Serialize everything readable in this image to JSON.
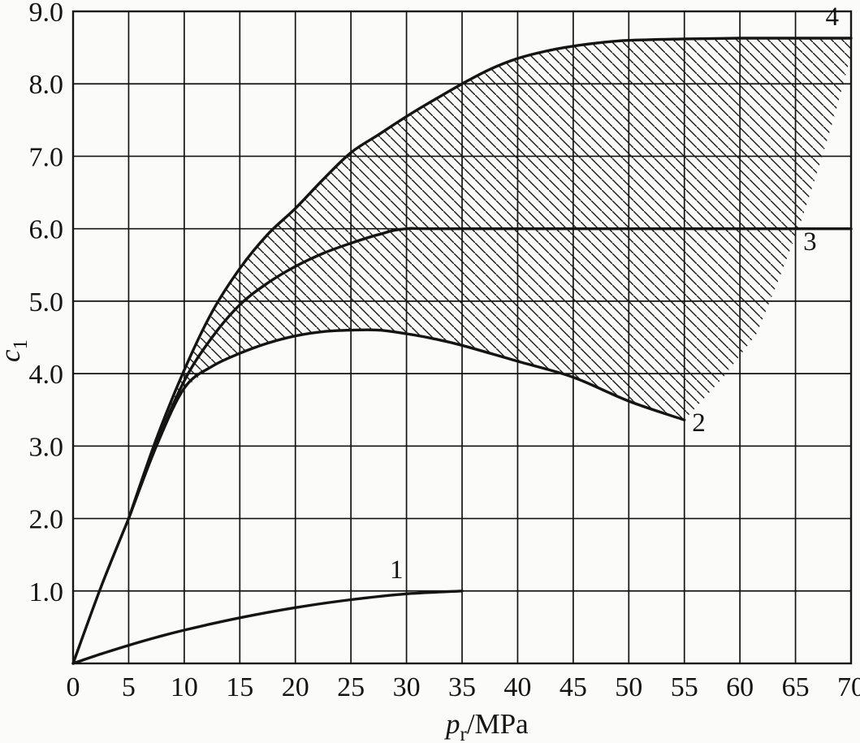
{
  "figure": {
    "background": "#fbfbfa",
    "ink": "#141414"
  },
  "chart_data": {
    "type": "line",
    "title": "",
    "xlabel": "pr/MPa",
    "ylabel": "c1",
    "xlabel_parts": {
      "symbol": "p",
      "subscript": "r",
      "unit": "/MPa"
    },
    "ylabel_parts": {
      "symbol": "c",
      "subscript": "1"
    },
    "xlim": [
      0,
      70
    ],
    "ylim": [
      0,
      9
    ],
    "grid": true,
    "x_grid_step": 5,
    "y_grid_step": 1,
    "legend_position": "none",
    "x_ticks": [
      {
        "value": 0,
        "label": "0"
      },
      {
        "value": 5,
        "label": "5"
      },
      {
        "value": 10,
        "label": "10"
      },
      {
        "value": 15,
        "label": "15"
      },
      {
        "value": 20,
        "label": "20"
      },
      {
        "value": 25,
        "label": "25"
      },
      {
        "value": 30,
        "label": "30"
      },
      {
        "value": 35,
        "label": "35"
      },
      {
        "value": 40,
        "label": "40"
      },
      {
        "value": 45,
        "label": "45"
      },
      {
        "value": 50,
        "label": "50"
      },
      {
        "value": 55,
        "label": "55"
      },
      {
        "value": 60,
        "label": "60"
      },
      {
        "value": 65,
        "label": "65"
      },
      {
        "value": 70,
        "label": "70"
      }
    ],
    "y_ticks": [
      {
        "value": 1,
        "label": "1.0"
      },
      {
        "value": 2,
        "label": "2.0"
      },
      {
        "value": 3,
        "label": "3.0"
      },
      {
        "value": 4,
        "label": "4.0"
      },
      {
        "value": 5,
        "label": "5.0"
      },
      {
        "value": 6,
        "label": "6.0"
      },
      {
        "value": 7,
        "label": "7.0"
      },
      {
        "value": 8,
        "label": "8.0"
      },
      {
        "value": 9,
        "label": "9.0"
      }
    ],
    "shared_stem": {
      "x": [
        0,
        2.5,
        5
      ],
      "y": [
        0,
        1.05,
        2.0
      ]
    },
    "series": [
      {
        "name": "curve-1",
        "label": "1",
        "label_pos": [
          29.1,
          1.3
        ],
        "x": [
          0,
          2.5,
          5,
          7.5,
          10,
          15,
          20,
          25,
          30,
          35
        ],
        "y": [
          0,
          0.13,
          0.25,
          0.36,
          0.46,
          0.63,
          0.77,
          0.88,
          0.96,
          1.0
        ]
      },
      {
        "name": "curve-2",
        "label": "2",
        "label_pos": [
          56.3,
          3.33
        ],
        "x": [
          5,
          7.5,
          10,
          12.5,
          15,
          17.5,
          20,
          22.5,
          25,
          27.5,
          30,
          32.5,
          35,
          40,
          45,
          50,
          55
        ],
        "y": [
          2.0,
          3.0,
          3.8,
          4.1,
          4.28,
          4.42,
          4.52,
          4.58,
          4.6,
          4.6,
          4.55,
          4.48,
          4.39,
          4.17,
          3.95,
          3.62,
          3.36
        ]
      },
      {
        "name": "curve-3",
        "label": "3",
        "label_pos": [
          66.3,
          5.83
        ],
        "x": [
          5,
          7.5,
          10,
          12.5,
          15,
          17.5,
          20,
          22.5,
          25,
          27.5,
          30,
          35,
          70
        ],
        "y": [
          2.0,
          3.02,
          3.9,
          4.5,
          4.95,
          5.25,
          5.48,
          5.66,
          5.8,
          5.92,
          6.0,
          6.0,
          6.0
        ]
      },
      {
        "name": "curve-4",
        "label": "4",
        "label_pos": [
          68.3,
          8.93
        ],
        "x": [
          5,
          7.5,
          10,
          12.5,
          15,
          17.5,
          20,
          22.5,
          25,
          27.5,
          30,
          32.5,
          35,
          37.5,
          40,
          42.5,
          45,
          47.5,
          50,
          55,
          60,
          65,
          70
        ],
        "y": [
          2.0,
          3.1,
          4.05,
          4.85,
          5.45,
          5.92,
          6.28,
          6.68,
          7.05,
          7.3,
          7.55,
          7.78,
          8.0,
          8.2,
          8.35,
          8.45,
          8.52,
          8.57,
          8.6,
          8.62,
          8.63,
          8.63,
          8.63
        ]
      }
    ],
    "hatch_region": {
      "upper_boundary": "curve-4",
      "lower_boundary": "curve-2",
      "right_edge": [
        [
          70,
          8.4
        ],
        [
          68.5,
          7.55
        ],
        [
          67,
          6.8
        ],
        [
          65.5,
          6.1
        ],
        [
          63.5,
          5.3
        ],
        [
          61.5,
          4.55
        ],
        [
          58.5,
          3.95
        ],
        [
          55,
          3.36
        ]
      ],
      "pattern": "diagonal-hatch-45deg",
      "spacing_px": 13
    }
  }
}
